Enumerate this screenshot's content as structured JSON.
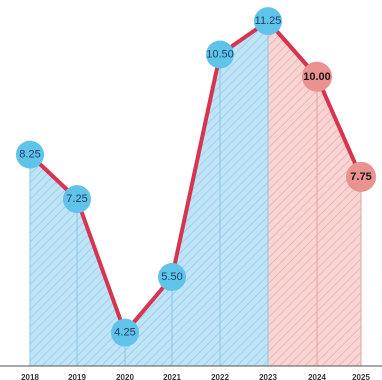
{
  "chart_data": {
    "type": "area",
    "title": "",
    "xlabel": "",
    "ylabel": "",
    "categories": [
      "2018",
      "2019",
      "2020",
      "2021",
      "2022",
      "2023",
      "2024",
      "2025"
    ],
    "series": [
      {
        "values": [
          8.25,
          7.25,
          4.25,
          5.5,
          10.5,
          11.25,
          10.0,
          7.75
        ],
        "labels": [
          "8.25",
          "7.25",
          "4.25",
          "5.50",
          "10.50",
          "11.25",
          "10.00",
          "7.75"
        ],
        "projected": [
          false,
          false,
          false,
          false,
          false,
          false,
          true,
          true
        ]
      }
    ],
    "ylim": [
      3.5,
      11.5
    ],
    "grid": false,
    "colors": {
      "line": "#d9344f",
      "actual_marker": "#5fc3ea",
      "actual_fill": "#bfe3f7",
      "actual_hatch": "#8cc7e6",
      "projected_marker": "#e9928f",
      "projected_fill": "#f8d4d3",
      "projected_hatch": "#e9a3a3"
    }
  }
}
